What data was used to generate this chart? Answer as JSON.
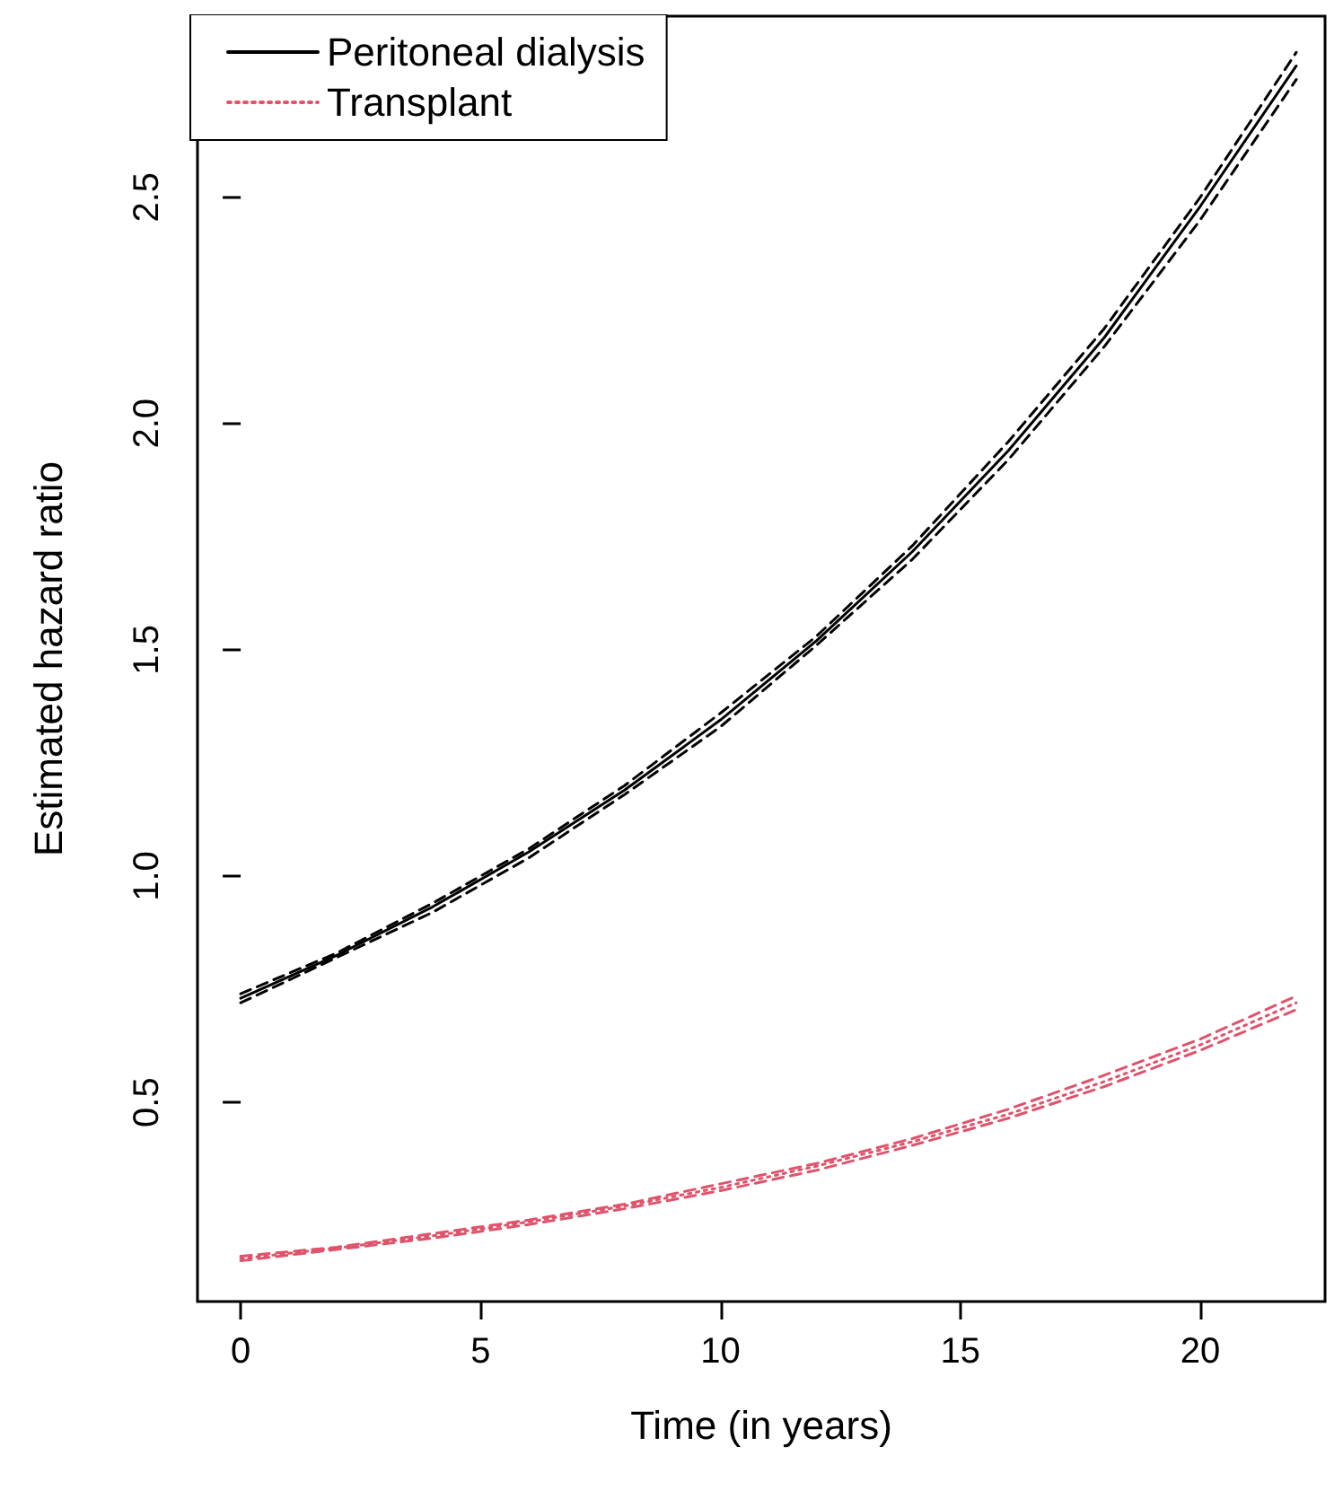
{
  "chart_data": {
    "type": "line",
    "xlabel": "Time (in years)",
    "ylabel": "Estimated hazard ratio",
    "xlim": [
      -0.9,
      22.6
    ],
    "ylim": [
      0.06,
      2.9
    ],
    "xticks": [
      0,
      5,
      10,
      15,
      20
    ],
    "yticks": [
      0.5,
      {
        "value": 1,
        "label": "1.0"
      },
      1.5,
      {
        "value": 2,
        "label": "2.0"
      },
      2.5
    ],
    "grid": false,
    "legend": "top left",
    "marker": "none",
    "series": [
      {
        "name": "Peritoneal dialysis",
        "color": "#000000",
        "line_style": "solid",
        "x": [
          0,
          2,
          4,
          6,
          8,
          10,
          12,
          14,
          16,
          18,
          20,
          22
        ],
        "values": [
          0.73,
          0.825,
          0.932,
          1.053,
          1.19,
          1.345,
          1.52,
          1.717,
          1.94,
          2.19,
          2.48,
          2.79
        ]
      },
      {
        "color": "#000000",
        "line_style": "dashed",
        "x": [
          0,
          2,
          4,
          6,
          8,
          10,
          12,
          14,
          16,
          18,
          20,
          22
        ],
        "values": [
          0.74,
          0.83,
          0.94,
          1.06,
          1.2,
          1.36,
          1.53,
          1.73,
          1.96,
          2.21,
          2.5,
          2.82
        ]
      },
      {
        "color": "#000000",
        "line_style": "dashed",
        "x": [
          0,
          2,
          4,
          6,
          8,
          10,
          12,
          14,
          16,
          18,
          20,
          22
        ],
        "values": [
          0.72,
          0.82,
          0.92,
          1.04,
          1.18,
          1.33,
          1.51,
          1.7,
          1.92,
          2.17,
          2.45,
          2.76
        ]
      },
      {
        "name": "Transplant",
        "color": "#df536b",
        "line_style": "dotted",
        "x": [
          0,
          2,
          4,
          6,
          8,
          10,
          12,
          14,
          16,
          18,
          20,
          22
        ],
        "values": [
          0.155,
          0.178,
          0.205,
          0.236,
          0.271,
          0.312,
          0.359,
          0.413,
          0.474,
          0.546,
          0.627,
          0.72
        ]
      },
      {
        "color": "#df536b",
        "line_style": "dashed",
        "x": [
          0,
          2,
          4,
          6,
          8,
          10,
          12,
          14,
          16,
          18,
          20,
          22
        ],
        "values": [
          0.16,
          0.18,
          0.21,
          0.24,
          0.275,
          0.32,
          0.365,
          0.42,
          0.485,
          0.56,
          0.64,
          0.735
        ]
      },
      {
        "color": "#df536b",
        "line_style": "dashed",
        "x": [
          0,
          2,
          4,
          6,
          8,
          10,
          12,
          14,
          16,
          18,
          20,
          22
        ],
        "values": [
          0.15,
          0.175,
          0.2,
          0.23,
          0.265,
          0.305,
          0.35,
          0.405,
          0.465,
          0.535,
          0.615,
          0.705
        ]
      }
    ]
  }
}
